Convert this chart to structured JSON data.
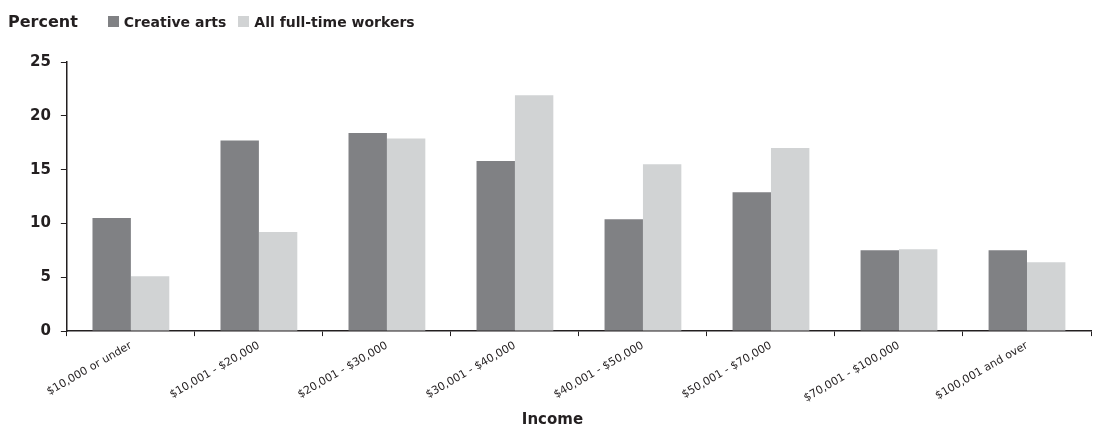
{
  "chart_data": {
    "type": "bar",
    "ylabel": "Percent",
    "xlabel": "Income",
    "categories": [
      "$10,000 or under",
      "$10,001 - $20,000",
      "$20,001 - $30,000",
      "$30,001 - $40,000",
      "$40,001 - $50,000",
      "$50,001 - $70,000",
      "$70,001 - $100,000",
      "$100,001 and over"
    ],
    "series": [
      {
        "name": "Creative arts",
        "color": "#808184",
        "values": [
          10.5,
          17.7,
          18.4,
          15.8,
          10.4,
          12.9,
          7.5,
          7.5
        ]
      },
      {
        "name": "All full-time workers",
        "color": "#d1d3d4",
        "values": [
          5.1,
          9.2,
          17.9,
          21.9,
          15.5,
          17.0,
          7.6,
          6.4
        ]
      }
    ],
    "ylim": [
      0,
      25
    ],
    "yticks": [
      0,
      5,
      10,
      15,
      20,
      25
    ],
    "grid": false,
    "legend": "top left"
  }
}
